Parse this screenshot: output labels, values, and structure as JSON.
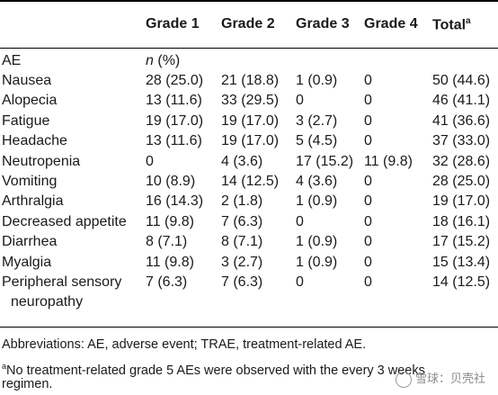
{
  "headers": [
    "",
    "Grade 1",
    "Grade 2",
    "Grade 3",
    "Grade 4",
    "Total"
  ],
  "total_sup": "a",
  "ae_label": "AE",
  "unit_n": "n",
  "unit_pct": "(%)",
  "rows": [
    [
      "Nausea",
      "28 (25.0)",
      "21 (18.8)",
      "1 (0.9)",
      "0",
      "50 (44.6)"
    ],
    [
      "Alopecia",
      "13 (11.6)",
      "33 (29.5)",
      "0",
      "0",
      "46 (41.1)"
    ],
    [
      "Fatigue",
      "19 (17.0)",
      "19 (17.0)",
      "3 (2.7)",
      "0",
      "41 (36.6)"
    ],
    [
      "Headache",
      "13 (11.6)",
      "19 (17.0)",
      "5 (4.5)",
      "0",
      "37 (33.0)"
    ],
    [
      "Neutropenia",
      "0",
      "4 (3.6)",
      "17 (15.2)",
      "11 (9.8)",
      "32 (28.6)"
    ],
    [
      "Vomiting",
      "10 (8.9)",
      "14 (12.5)",
      "4 (3.6)",
      "0",
      "28 (25.0)"
    ],
    [
      "Arthralgia",
      "16 (14.3)",
      "2 (1.8)",
      "1 (0.9)",
      "0",
      "19 (17.0)"
    ],
    [
      "Decreased appetite",
      "11 (9.8)",
      "7 (6.3)",
      "0",
      "0",
      "18 (16.1)"
    ],
    [
      "Diarrhea",
      "8 (7.1)",
      "8 (7.1)",
      "1 (0.9)",
      "0",
      "17 (15.2)"
    ],
    [
      "Myalgia",
      "11 (9.8)",
      "3 (2.7)",
      "1 (0.9)",
      "0",
      "15 (13.4)"
    ],
    [
      "Peripheral sensory",
      "7 (6.3)",
      "7 (6.3)",
      "0",
      "0",
      "14 (12.5)"
    ]
  ],
  "last_row_cont": "neuropathy",
  "footnote_abbrev": "Abbreviations: AE, adverse event; TRAE, treatment-related AE.",
  "footnote_sup": "a",
  "footnote_a_line1": "No treatment-related grade 5 AEs were observed with the every 3 weeks",
  "footnote_a_line2": "regimen.",
  "watermark": "雪球：贝壳社"
}
